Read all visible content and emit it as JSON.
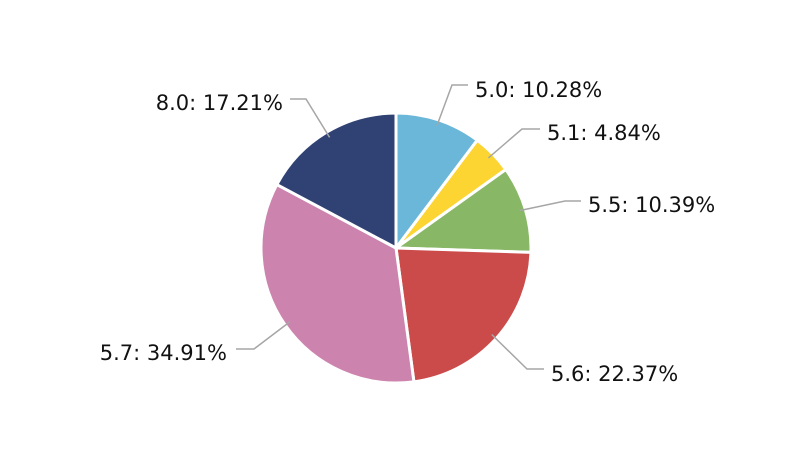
{
  "chart_data": {
    "type": "pie",
    "title": "",
    "slices": [
      {
        "label": "5.0",
        "value": 10.28,
        "text": "5.0: 10.28%",
        "color": "#6bb7d9"
      },
      {
        "label": "5.1",
        "value": 4.84,
        "text": "5.1: 4.84%",
        "color": "#fcd533"
      },
      {
        "label": "5.5",
        "value": 10.39,
        "text": "5.5: 10.39%",
        "color": "#88b766"
      },
      {
        "label": "5.6",
        "value": 22.37,
        "text": "5.6: 22.37%",
        "color": "#cb4b4b"
      },
      {
        "label": "5.7",
        "value": 34.91,
        "text": "5.7: 34.91%",
        "color": "#cc83ad"
      },
      {
        "label": "8.0",
        "value": 17.21,
        "text": "8.0: 17.21%",
        "color": "#304274"
      }
    ],
    "start_angle_deg": 0,
    "direction": "clockwise",
    "legend": "none",
    "data_labels": "outside with leader lines"
  }
}
